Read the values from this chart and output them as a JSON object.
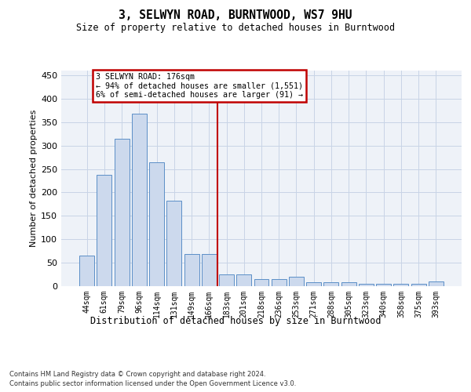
{
  "title": "3, SELWYN ROAD, BURNTWOOD, WS7 9HU",
  "subtitle": "Size of property relative to detached houses in Burntwood",
  "xlabel": "Distribution of detached houses by size in Burntwood",
  "ylabel": "Number of detached properties",
  "categories": [
    "44sqm",
    "61sqm",
    "79sqm",
    "96sqm",
    "114sqm",
    "131sqm",
    "149sqm",
    "166sqm",
    "183sqm",
    "201sqm",
    "218sqm",
    "236sqm",
    "253sqm",
    "271sqm",
    "288sqm",
    "305sqm",
    "323sqm",
    "340sqm",
    "358sqm",
    "375sqm",
    "393sqm"
  ],
  "values": [
    65,
    237,
    315,
    368,
    265,
    183,
    68,
    68,
    25,
    25,
    15,
    15,
    20,
    8,
    8,
    8,
    5,
    5,
    5,
    5,
    10
  ],
  "bar_color": "#ccd9ed",
  "bar_edge_color": "#5b8fc7",
  "property_line_index": 8,
  "annotation_text_line1": "3 SELWYN ROAD: 176sqm",
  "annotation_text_line2": "← 94% of detached houses are smaller (1,551)",
  "annotation_text_line3": "6% of semi-detached houses are larger (91) →",
  "annotation_box_edgecolor": "#c00000",
  "vline_color": "#c00000",
  "grid_color": "#c8d4e6",
  "background_color": "#eef2f8",
  "ylim": [
    0,
    460
  ],
  "yticks": [
    0,
    50,
    100,
    150,
    200,
    250,
    300,
    350,
    400,
    450
  ],
  "footnote1": "Contains HM Land Registry data © Crown copyright and database right 2024.",
  "footnote2": "Contains public sector information licensed under the Open Government Licence v3.0."
}
